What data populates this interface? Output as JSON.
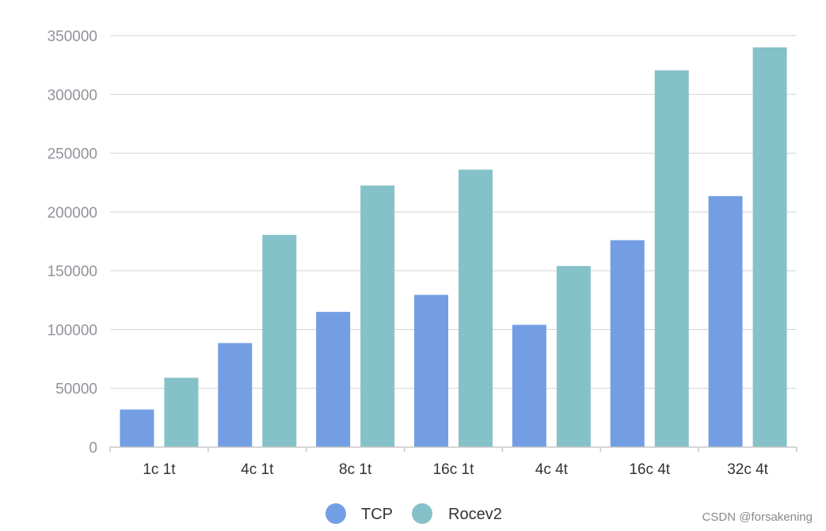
{
  "chart_data": {
    "type": "bar",
    "title": "",
    "xlabel": "",
    "ylabel": "",
    "categories": [
      "1c 1t",
      "4c 1t",
      "8c 1t",
      "16c 1t",
      "4c 4t",
      "16c 4t",
      "32c 4t"
    ],
    "series": [
      {
        "name": "TCP",
        "color": "#739ee3",
        "values": [
          32000,
          88500,
          115000,
          129500,
          104000,
          176000,
          213500
        ]
      },
      {
        "name": "Rocev2",
        "color": "#85c1c8",
        "values": [
          59000,
          180500,
          222500,
          236000,
          154000,
          320500,
          340000
        ]
      }
    ],
    "yticks": [
      0,
      50000,
      100000,
      150000,
      200000,
      250000,
      300000,
      350000
    ],
    "ylim": [
      0,
      350000
    ],
    "grid": true,
    "legend_position": "bottom-center"
  },
  "watermark": "CSDN @forsakening"
}
